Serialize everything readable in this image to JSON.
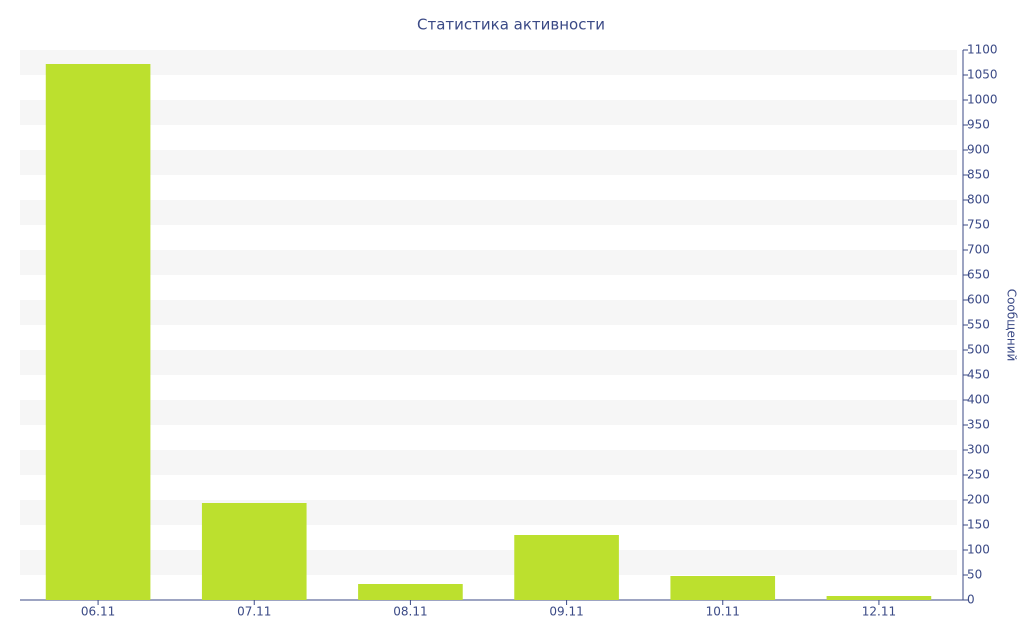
{
  "chart_data": {
    "type": "bar",
    "title": "Статистика активности",
    "y_label": "Сообщений",
    "categories": [
      "06.11",
      "07.11",
      "08.11",
      "09.11",
      "10.11",
      "12.11"
    ],
    "values": [
      1072,
      194,
      32,
      130,
      48,
      8
    ],
    "color": "#bce02e",
    "ylim": [
      0,
      1100
    ],
    "yticks": [
      0,
      50,
      100,
      150,
      200,
      250,
      300,
      350,
      400,
      450,
      500,
      550,
      600,
      650,
      700,
      750,
      800,
      850,
      900,
      950,
      1000,
      1050,
      1100
    ],
    "y_axis_side": "right",
    "grid": "bands"
  }
}
